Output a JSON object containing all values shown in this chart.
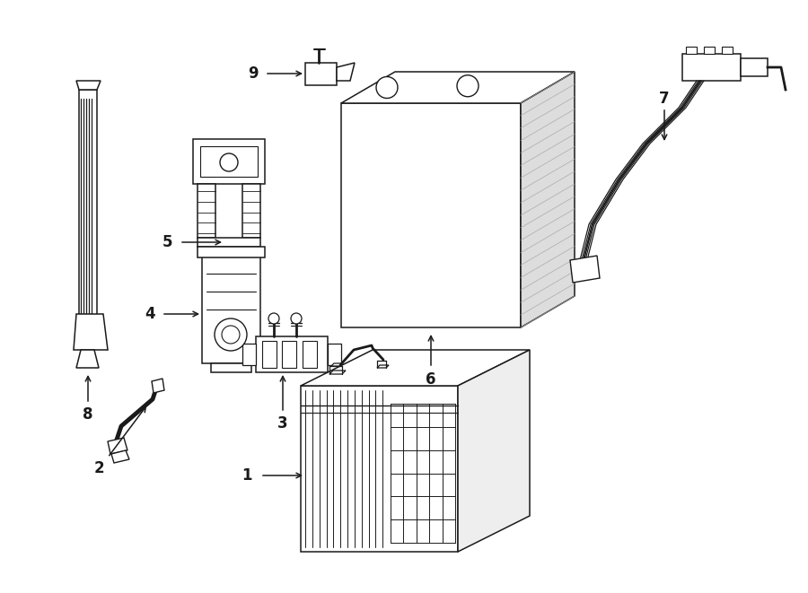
{
  "bg_color": "#ffffff",
  "line_color": "#1a1a1a",
  "figsize": [
    9.0,
    6.61
  ],
  "dpi": 100,
  "lw": 1.1
}
